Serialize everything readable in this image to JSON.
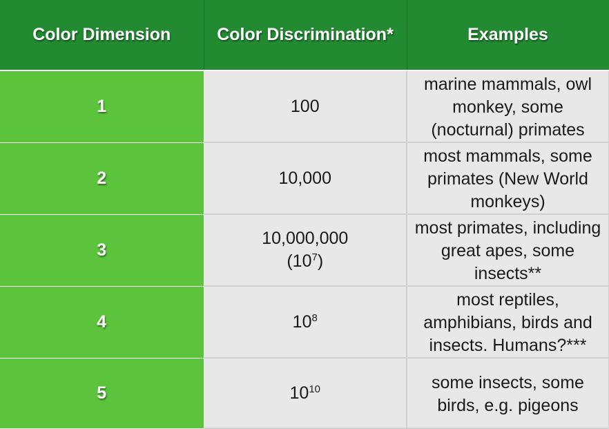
{
  "headers": [
    "Color Dimension",
    "Color Discrimination*",
    "Examples"
  ],
  "rows": [
    {
      "dimension": "1",
      "discrimination": {
        "main": "100",
        "alt": null
      },
      "examples": "marine mammals, owl monkey, some (nocturnal) primates"
    },
    {
      "dimension": "2",
      "discrimination": {
        "main": "10,000",
        "alt": null
      },
      "examples": "most mammals, some primates (New World monkeys)"
    },
    {
      "dimension": "3",
      "discrimination": {
        "main": "10,000,000",
        "alt": {
          "base": "10",
          "exp": "7",
          "wrapped": true
        }
      },
      "examples": "most primates, including great apes, some insects**"
    },
    {
      "dimension": "4",
      "discrimination": {
        "main": null,
        "alt": {
          "base": "10",
          "exp": "8",
          "wrapped": false
        }
      },
      "examples": "most reptiles, amphibians, birds and insects.  Humans?***"
    },
    {
      "dimension": "5",
      "discrimination": {
        "main": null,
        "alt": {
          "base": "10",
          "exp": "10",
          "wrapped": false
        }
      },
      "examples": "some insects, some birds, e.g. pigeons"
    }
  ],
  "colors": {
    "header_bg": "#228b32",
    "dimension_bg": "#5bc43c",
    "cell_bg": "#e8e8e8"
  }
}
